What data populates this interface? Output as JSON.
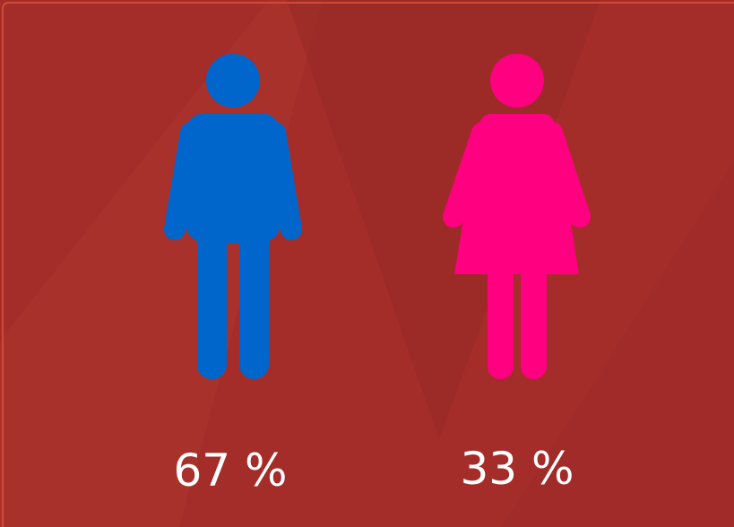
{
  "items": [
    {
      "label": "67 %"
    },
    {
      "label": "33 %"
    }
  ]
}
